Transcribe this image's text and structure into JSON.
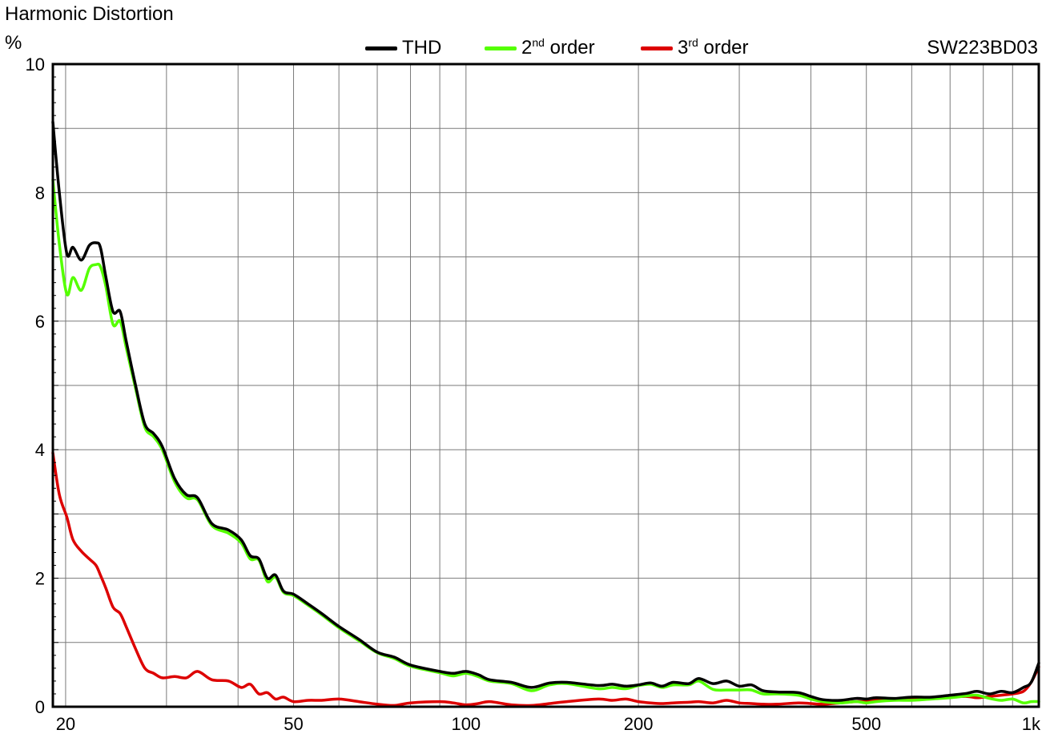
{
  "title": "Harmonic Distortion",
  "unit": "%",
  "model": "SW223BD03",
  "legend": [
    {
      "name": "THD",
      "color": "#000000"
    },
    {
      "name": "2nd order",
      "base": "2",
      "sup": "nd",
      "rest": " order",
      "color": "#55ff00"
    },
    {
      "name": "3rd order",
      "base": "3",
      "sup": "rd",
      "rest": " order",
      "color": "#dd0000"
    }
  ],
  "chart_data": {
    "type": "line",
    "x_scale": "log",
    "xlim": [
      19,
      1000
    ],
    "ylim": [
      0,
      10
    ],
    "xlabel": "",
    "ylabel": "%",
    "grid": true,
    "legend_position": "top",
    "x_tick_labels": [
      {
        "value": 20,
        "label": "20"
      },
      {
        "value": 50,
        "label": "50"
      },
      {
        "value": 100,
        "label": "100"
      },
      {
        "value": 200,
        "label": "200"
      },
      {
        "value": 500,
        "label": "500"
      },
      {
        "value": 1000,
        "label": "1k"
      }
    ],
    "x_grid": [
      20,
      30,
      40,
      50,
      60,
      70,
      80,
      90,
      100,
      200,
      300,
      400,
      500,
      600,
      700,
      800,
      900
    ],
    "y_tick_labels": [
      {
        "value": 0,
        "label": "0"
      },
      {
        "value": 2,
        "label": "2"
      },
      {
        "value": 4,
        "label": "4"
      },
      {
        "value": 6,
        "label": "6"
      },
      {
        "value": 8,
        "label": "8"
      },
      {
        "value": 10,
        "label": "10"
      }
    ],
    "y_grid": [
      1,
      2,
      3,
      4,
      5,
      6,
      7,
      8,
      9
    ],
    "series": [
      {
        "name": "THD",
        "color": "#000000",
        "points": [
          [
            19,
            9.1
          ],
          [
            19.5,
            8.0
          ],
          [
            20.1,
            7.05
          ],
          [
            20.6,
            7.15
          ],
          [
            21.3,
            6.95
          ],
          [
            22.0,
            7.18
          ],
          [
            22.6,
            7.22
          ],
          [
            23.0,
            7.15
          ],
          [
            23.5,
            6.7
          ],
          [
            24.2,
            6.15
          ],
          [
            24.9,
            6.15
          ],
          [
            25.5,
            5.7
          ],
          [
            26.5,
            5.0
          ],
          [
            27.5,
            4.4
          ],
          [
            28.5,
            4.25
          ],
          [
            29.5,
            4.05
          ],
          [
            31.0,
            3.55
          ],
          [
            32.5,
            3.3
          ],
          [
            34.0,
            3.25
          ],
          [
            36.0,
            2.85
          ],
          [
            38.5,
            2.75
          ],
          [
            40.5,
            2.6
          ],
          [
            42.0,
            2.35
          ],
          [
            43.5,
            2.3
          ],
          [
            45.0,
            2.0
          ],
          [
            46.5,
            2.05
          ],
          [
            48.0,
            1.8
          ],
          [
            50.0,
            1.75
          ],
          [
            53.0,
            1.6
          ],
          [
            56.0,
            1.45
          ],
          [
            60.0,
            1.25
          ],
          [
            65.0,
            1.05
          ],
          [
            70.0,
            0.85
          ],
          [
            75.0,
            0.77
          ],
          [
            80.0,
            0.65
          ],
          [
            90.0,
            0.55
          ],
          [
            95.0,
            0.52
          ],
          [
            100.0,
            0.55
          ],
          [
            105.0,
            0.5
          ],
          [
            110.0,
            0.42
          ],
          [
            120.0,
            0.38
          ],
          [
            130.0,
            0.3
          ],
          [
            140.0,
            0.37
          ],
          [
            150.0,
            0.38
          ],
          [
            170.0,
            0.33
          ],
          [
            180.0,
            0.35
          ],
          [
            190.0,
            0.32
          ],
          [
            200.0,
            0.34
          ],
          [
            210.0,
            0.37
          ],
          [
            220.0,
            0.32
          ],
          [
            230.0,
            0.38
          ],
          [
            245.0,
            0.36
          ],
          [
            255.0,
            0.44
          ],
          [
            270.0,
            0.36
          ],
          [
            285.0,
            0.4
          ],
          [
            300.0,
            0.32
          ],
          [
            315.0,
            0.34
          ],
          [
            330.0,
            0.25
          ],
          [
            350.0,
            0.23
          ],
          [
            380.0,
            0.22
          ],
          [
            400.0,
            0.16
          ],
          [
            420.0,
            0.11
          ],
          [
            450.0,
            0.1
          ],
          [
            480.0,
            0.13
          ],
          [
            500.0,
            0.12
          ],
          [
            520.0,
            0.14
          ],
          [
            560.0,
            0.13
          ],
          [
            600.0,
            0.15
          ],
          [
            650.0,
            0.15
          ],
          [
            700.0,
            0.18
          ],
          [
            750.0,
            0.21
          ],
          [
            780.0,
            0.24
          ],
          [
            820.0,
            0.2
          ],
          [
            860.0,
            0.24
          ],
          [
            900.0,
            0.22
          ],
          [
            940.0,
            0.3
          ],
          [
            970.0,
            0.38
          ],
          [
            1000.0,
            0.68
          ]
        ]
      },
      {
        "name": "2nd order",
        "color": "#55ff00",
        "points": [
          [
            19,
            8.2
          ],
          [
            19.5,
            7.2
          ],
          [
            20.1,
            6.42
          ],
          [
            20.6,
            6.68
          ],
          [
            21.3,
            6.48
          ],
          [
            22.0,
            6.82
          ],
          [
            22.6,
            6.88
          ],
          [
            23.0,
            6.85
          ],
          [
            23.5,
            6.55
          ],
          [
            24.2,
            5.95
          ],
          [
            24.9,
            6.0
          ],
          [
            25.5,
            5.6
          ],
          [
            26.5,
            4.95
          ],
          [
            27.5,
            4.35
          ],
          [
            28.5,
            4.2
          ],
          [
            29.5,
            4.0
          ],
          [
            31.0,
            3.5
          ],
          [
            32.5,
            3.25
          ],
          [
            34.0,
            3.22
          ],
          [
            36.0,
            2.82
          ],
          [
            38.5,
            2.7
          ],
          [
            40.5,
            2.55
          ],
          [
            42.0,
            2.3
          ],
          [
            43.5,
            2.28
          ],
          [
            45.0,
            1.95
          ],
          [
            46.5,
            2.02
          ],
          [
            48.0,
            1.78
          ],
          [
            50.0,
            1.73
          ],
          [
            53.0,
            1.58
          ],
          [
            56.0,
            1.43
          ],
          [
            60.0,
            1.23
          ],
          [
            65.0,
            1.03
          ],
          [
            70.0,
            0.84
          ],
          [
            75.0,
            0.75
          ],
          [
            80.0,
            0.63
          ],
          [
            90.0,
            0.53
          ],
          [
            95.0,
            0.48
          ],
          [
            100.0,
            0.52
          ],
          [
            105.0,
            0.47
          ],
          [
            110.0,
            0.4
          ],
          [
            120.0,
            0.36
          ],
          [
            130.0,
            0.25
          ],
          [
            140.0,
            0.34
          ],
          [
            150.0,
            0.36
          ],
          [
            170.0,
            0.28
          ],
          [
            180.0,
            0.3
          ],
          [
            190.0,
            0.28
          ],
          [
            200.0,
            0.33
          ],
          [
            210.0,
            0.35
          ],
          [
            220.0,
            0.3
          ],
          [
            230.0,
            0.34
          ],
          [
            245.0,
            0.34
          ],
          [
            255.0,
            0.4
          ],
          [
            270.0,
            0.27
          ],
          [
            285.0,
            0.26
          ],
          [
            300.0,
            0.26
          ],
          [
            315.0,
            0.26
          ],
          [
            330.0,
            0.2
          ],
          [
            350.0,
            0.2
          ],
          [
            380.0,
            0.18
          ],
          [
            400.0,
            0.12
          ],
          [
            420.0,
            0.08
          ],
          [
            450.0,
            0.06
          ],
          [
            480.0,
            0.08
          ],
          [
            500.0,
            0.06
          ],
          [
            520.0,
            0.08
          ],
          [
            560.0,
            0.1
          ],
          [
            600.0,
            0.1
          ],
          [
            650.0,
            0.12
          ],
          [
            700.0,
            0.14
          ],
          [
            750.0,
            0.17
          ],
          [
            780.0,
            0.18
          ],
          [
            820.0,
            0.13
          ],
          [
            860.0,
            0.1
          ],
          [
            900.0,
            0.12
          ],
          [
            940.0,
            0.06
          ],
          [
            970.0,
            0.08
          ],
          [
            1000.0,
            0.08
          ]
        ]
      },
      {
        "name": "3rd order",
        "color": "#dd0000",
        "points": [
          [
            19,
            3.95
          ],
          [
            19.5,
            3.3
          ],
          [
            20.1,
            2.95
          ],
          [
            20.6,
            2.6
          ],
          [
            21.3,
            2.42
          ],
          [
            22.0,
            2.3
          ],
          [
            22.6,
            2.2
          ],
          [
            23.0,
            2.05
          ],
          [
            23.5,
            1.85
          ],
          [
            24.2,
            1.55
          ],
          [
            24.9,
            1.45
          ],
          [
            25.5,
            1.25
          ],
          [
            26.5,
            0.9
          ],
          [
            27.5,
            0.6
          ],
          [
            28.5,
            0.52
          ],
          [
            29.5,
            0.45
          ],
          [
            31.0,
            0.47
          ],
          [
            32.5,
            0.45
          ],
          [
            34.0,
            0.55
          ],
          [
            36.0,
            0.42
          ],
          [
            38.5,
            0.4
          ],
          [
            40.5,
            0.3
          ],
          [
            42.0,
            0.35
          ],
          [
            43.5,
            0.2
          ],
          [
            45.0,
            0.22
          ],
          [
            46.5,
            0.12
          ],
          [
            48.0,
            0.15
          ],
          [
            50.0,
            0.08
          ],
          [
            53.0,
            0.1
          ],
          [
            56.0,
            0.1
          ],
          [
            60.0,
            0.12
          ],
          [
            65.0,
            0.08
          ],
          [
            70.0,
            0.04
          ],
          [
            75.0,
            0.02
          ],
          [
            80.0,
            0.06
          ],
          [
            90.0,
            0.08
          ],
          [
            95.0,
            0.06
          ],
          [
            100.0,
            0.03
          ],
          [
            105.0,
            0.05
          ],
          [
            110.0,
            0.08
          ],
          [
            120.0,
            0.03
          ],
          [
            130.0,
            0.02
          ],
          [
            140.0,
            0.05
          ],
          [
            150.0,
            0.08
          ],
          [
            170.0,
            0.12
          ],
          [
            180.0,
            0.1
          ],
          [
            190.0,
            0.12
          ],
          [
            200.0,
            0.08
          ],
          [
            210.0,
            0.06
          ],
          [
            220.0,
            0.05
          ],
          [
            230.0,
            0.06
          ],
          [
            245.0,
            0.07
          ],
          [
            255.0,
            0.08
          ],
          [
            270.0,
            0.06
          ],
          [
            285.0,
            0.1
          ],
          [
            300.0,
            0.06
          ],
          [
            315.0,
            0.05
          ],
          [
            330.0,
            0.04
          ],
          [
            350.0,
            0.04
          ],
          [
            380.0,
            0.06
          ],
          [
            400.0,
            0.05
          ],
          [
            420.0,
            0.04
          ],
          [
            450.0,
            0.06
          ],
          [
            480.0,
            0.08
          ],
          [
            500.0,
            0.08
          ],
          [
            520.0,
            0.1
          ],
          [
            560.0,
            0.12
          ],
          [
            600.0,
            0.12
          ],
          [
            650.0,
            0.14
          ],
          [
            700.0,
            0.15
          ],
          [
            750.0,
            0.16
          ],
          [
            780.0,
            0.14
          ],
          [
            820.0,
            0.16
          ],
          [
            860.0,
            0.18
          ],
          [
            900.0,
            0.2
          ],
          [
            940.0,
            0.24
          ],
          [
            970.0,
            0.38
          ],
          [
            1000.0,
            0.62
          ]
        ]
      }
    ]
  }
}
